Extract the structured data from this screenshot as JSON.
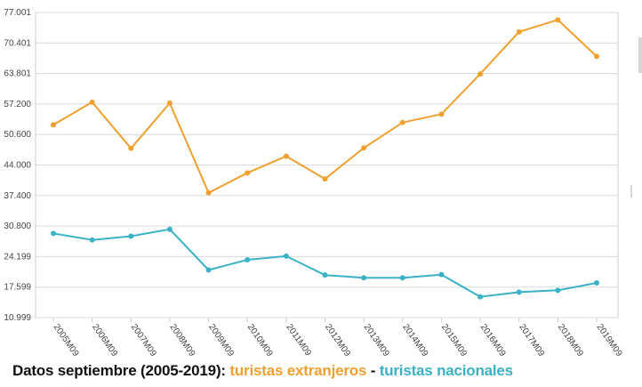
{
  "caption": {
    "prefix": "Datos septiembre (2005-2019):",
    "series_a": "turistas extranjeros",
    "separator": "-",
    "series_b": "turistas nacionales"
  },
  "colors": {
    "extranjeros": "#F0A030",
    "nacionales": "#3BB1C5",
    "grid": "#d9d9d9",
    "axis_text": "#444444"
  },
  "chart_data": {
    "type": "line",
    "categories": [
      "2005M09",
      "2006M09",
      "2007M09",
      "2008M09",
      "2009M09",
      "2010M09",
      "2011M09",
      "2012M09",
      "2013M09",
      "2014M09",
      "2015M09",
      "2016M09",
      "2017M09",
      "2018M09",
      "2019M09"
    ],
    "y_ticks": [
      "10.999",
      "17.599",
      "24.199",
      "30.800",
      "37.400",
      "44.000",
      "50.600",
      "57.200",
      "63.801",
      "70.401",
      "77.001"
    ],
    "ylim": [
      10.999,
      77.001
    ],
    "grid": true,
    "series": [
      {
        "key": "extranjeros",
        "values": [
          52.7,
          57.6,
          47.6,
          57.4,
          38.0,
          42.3,
          45.9,
          41.0,
          47.7,
          53.2,
          55.0,
          63.7,
          72.8,
          75.4,
          67.5
        ]
      },
      {
        "key": "nacionales",
        "values": [
          29.2,
          27.8,
          28.6,
          30.1,
          21.3,
          23.5,
          24.3,
          20.2,
          19.6,
          19.6,
          20.3,
          15.5,
          16.5,
          16.9,
          18.5
        ]
      }
    ]
  }
}
